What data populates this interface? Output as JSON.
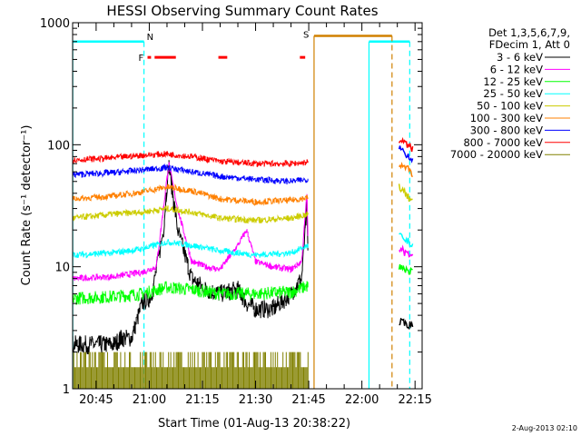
{
  "chart_data": {
    "type": "line",
    "title": "HESSI Observing Summary Count Rates",
    "ylabel": "Count Rate (s⁻¹ detector⁻¹)",
    "xlabel": "Start Time (01-Aug-13 20:38:22)",
    "y_scale": "log",
    "ylim": [
      1,
      1000
    ],
    "xlim": [
      "20:38:22",
      "22:17:00"
    ],
    "x_unit": "minutes of day",
    "x_ticks": [
      "20:45",
      "21:00",
      "21:15",
      "21:30",
      "21:45",
      "22:00",
      "22:15"
    ],
    "x_tick_minutes": [
      1245,
      1260,
      1275,
      1290,
      1305,
      1320,
      1335
    ],
    "y_ticks": [
      "1",
      "10",
      "100",
      "1000"
    ],
    "y_tick_values": [
      1,
      10,
      100,
      1000
    ],
    "legend": {
      "position": "right",
      "header": [
        "Det 1,3,5,6,7,9,",
        "FDecim 1, Att 0"
      ]
    },
    "date_stamp": "2-Aug-2013 02:10",
    "series": [
      {
        "name": "3 - 6 keV",
        "color": "#000000",
        "x": [
          1238.4,
          1250,
          1252,
          1255,
          1258,
          1260,
          1261,
          1264,
          1265.5,
          1268,
          1272,
          1276,
          1280,
          1285,
          1287.5,
          1290,
          1295,
          1300,
          1303,
          1304.5,
          1305
        ],
        "y": [
          2.3,
          2.3,
          2.6,
          2.6,
          5,
          5.5,
          6.5,
          20,
          70,
          20,
          8,
          6.5,
          6,
          6.5,
          5,
          4.5,
          4.5,
          6,
          8,
          30,
          6
        ]
      },
      {
        "name": "6 - 12 keV",
        "color": "#ff00ff",
        "x": [
          1238.4,
          1250,
          1258,
          1262,
          1264,
          1265.5,
          1268,
          1272,
          1276,
          1280,
          1285,
          1287.5,
          1290,
          1295,
          1300,
          1303,
          1304.5,
          1305
        ],
        "y": [
          8,
          8.3,
          9,
          10,
          30,
          70,
          30,
          11,
          10,
          9.5,
          15,
          20,
          11,
          10,
          9.5,
          11,
          40,
          9
        ]
      },
      {
        "name": "12 - 25 keV",
        "color": "#00ff00",
        "x": [
          1238.4,
          1250,
          1258,
          1265,
          1272,
          1280,
          1290,
          1300,
          1305
        ],
        "y": [
          5.5,
          5.7,
          6,
          6.8,
          6.5,
          6,
          6,
          6.2,
          7
        ]
      },
      {
        "name": "25 - 50 keV",
        "color": "#00ffff",
        "x": [
          1238.4,
          1250,
          1258,
          1265,
          1272,
          1280,
          1290,
          1300,
          1305
        ],
        "y": [
          12.5,
          13,
          14,
          16,
          15,
          13.5,
          12.5,
          13,
          15
        ]
      },
      {
        "name": "50 - 100 keV",
        "color": "#cccc00",
        "x": [
          1238.4,
          1250,
          1258,
          1265,
          1272,
          1280,
          1290,
          1300,
          1305
        ],
        "y": [
          25,
          27,
          28,
          30,
          28,
          25,
          24,
          25,
          27
        ]
      },
      {
        "name": "100 - 300 keV",
        "color": "#ff8000",
        "x": [
          1238.4,
          1250,
          1258,
          1265,
          1272,
          1280,
          1290,
          1300,
          1305
        ],
        "y": [
          36,
          38,
          41,
          45,
          42,
          36,
          34,
          35,
          37
        ]
      },
      {
        "name": "300 - 800 keV",
        "color": "#0000ff",
        "x": [
          1238.4,
          1250,
          1258,
          1265,
          1272,
          1280,
          1290,
          1300,
          1305
        ],
        "y": [
          57,
          59,
          62,
          65,
          60,
          55,
          52,
          50,
          52
        ]
      },
      {
        "name": "800 - 7000 keV",
        "color": "#ff0000",
        "x": [
          1238.4,
          1250,
          1258,
          1265,
          1272,
          1280,
          1290,
          1300,
          1305
        ],
        "y": [
          75,
          78,
          82,
          84,
          80,
          73,
          70,
          70,
          72
        ]
      },
      {
        "name": "7000 - 20000 keV",
        "color": "#808000",
        "x": [
          1238.4,
          1305
        ],
        "y": [
          1.5,
          1.5
        ]
      }
    ],
    "after_gap_segments": [
      {
        "series": "800 - 7000 keV",
        "x": [
          1330.5,
          1334.5
        ],
        "y": [
          110,
          92
        ]
      },
      {
        "series": "300 - 800 keV",
        "x": [
          1330.5,
          1334.5
        ],
        "y": [
          95,
          75
        ]
      },
      {
        "series": "100 - 300 keV",
        "x": [
          1330.5,
          1334.5
        ],
        "y": [
          70,
          58
        ]
      },
      {
        "series": "50 - 100 keV",
        "x": [
          1330.5,
          1334.5
        ],
        "y": [
          45,
          33
        ]
      },
      {
        "series": "25 - 50 keV",
        "x": [
          1330.5,
          1334.5
        ],
        "y": [
          18,
          15
        ]
      },
      {
        "series": "6 - 12 keV",
        "x": [
          1330.5,
          1334.5
        ],
        "y": [
          14,
          12
        ]
      },
      {
        "series": "12 - 25 keV",
        "x": [
          1330.5,
          1334.5
        ],
        "y": [
          10,
          9
        ]
      },
      {
        "series": "3 - 6 keV",
        "x": [
          1330.5,
          1334.5
        ],
        "y": [
          3.5,
          3.3
        ]
      }
    ],
    "flags": {
      "night": {
        "label": "N",
        "color": "#00ffff",
        "level": 700,
        "bars": [
          [
            1238.4,
            1258.5
          ],
          [
            1322,
            1333.5
          ]
        ],
        "solid_lines": [
          1238.4,
          1322
        ],
        "dashed_lines": [
          1258.5,
          1333.5
        ]
      },
      "saa": {
        "label": "S",
        "color": "#d08000",
        "level": 780,
        "bars": [
          [
            1306.5,
            1328.5
          ]
        ],
        "solid_lines": [
          1306.5
        ],
        "dashed_lines": [
          1328.5
        ]
      },
      "flare": {
        "label": "F",
        "color": "#ff0000",
        "level": 520,
        "bars": [
          [
            1259.5,
            1260.5
          ],
          [
            1261.5,
            1267.5
          ],
          [
            1279.5,
            1282
          ],
          [
            1302.5,
            1304
          ]
        ]
      }
    }
  }
}
